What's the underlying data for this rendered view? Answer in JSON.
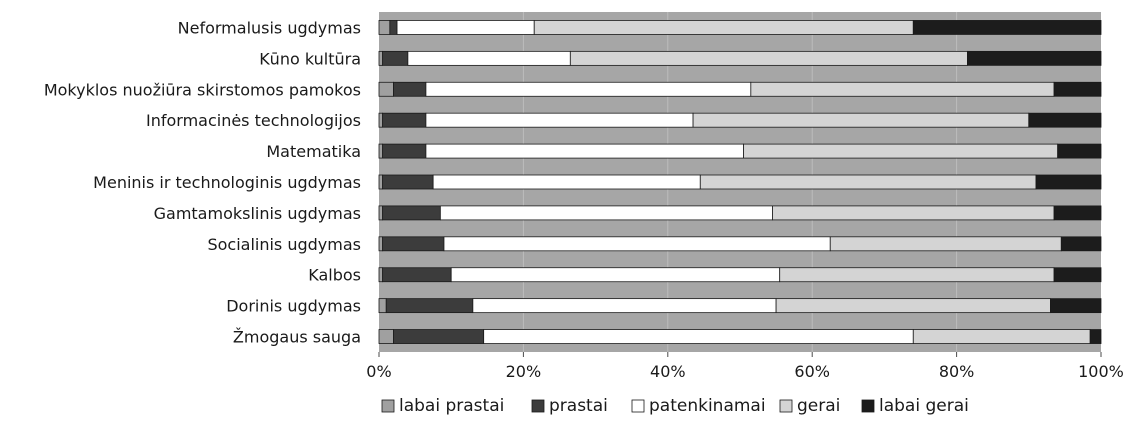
{
  "chart_data": {
    "type": "bar",
    "orientation": "horizontal",
    "stacked": "percent",
    "title": "",
    "xlabel": "",
    "ylabel": "",
    "xlim": [
      0,
      100
    ],
    "grid": "vertical",
    "legend_position": "bottom",
    "categories": [
      "Neformalusis ugdymas",
      "Kūno kultūra",
      "Mokyklos nuožiūra skirstomos pamokos",
      "Informacinės technologijos",
      "Matematika",
      "Meninis ir technologinis ugdymas",
      "Gamtamokslinis ugdymas",
      "Socialinis ugdymas",
      "Kalbos",
      "Dorinis ugdymas",
      "Žmogaus sauga"
    ],
    "series": [
      {
        "name": "labai prastai",
        "color": "#a0a0a0",
        "values": [
          1.5,
          0.5,
          2,
          0.5,
          0.5,
          0.5,
          0.5,
          0.5,
          0.5,
          1,
          2
        ]
      },
      {
        "name": "prastai",
        "color": "#3c3c3c",
        "values": [
          1,
          3.5,
          4.5,
          6,
          6,
          7,
          8,
          8.5,
          9.5,
          12,
          12.5
        ]
      },
      {
        "name": "patenkinamai",
        "color": "#ffffff",
        "values": [
          19,
          22.5,
          45,
          37,
          44,
          37,
          46,
          53.5,
          45.5,
          42,
          59.5
        ]
      },
      {
        "name": "gerai",
        "color": "#d4d4d4",
        "values": [
          52.5,
          55,
          42,
          46.5,
          43.5,
          46.5,
          39,
          32,
          38,
          38,
          24.5
        ]
      },
      {
        "name": "labai gerai",
        "color": "#1c1c1c",
        "values": [
          26,
          18.5,
          6.5,
          10,
          6,
          9,
          6.5,
          5.5,
          6.5,
          7,
          1.5
        ]
      }
    ],
    "x_ticks": [
      "0%",
      "20%",
      "40%",
      "60%",
      "80%",
      "100%"
    ]
  }
}
